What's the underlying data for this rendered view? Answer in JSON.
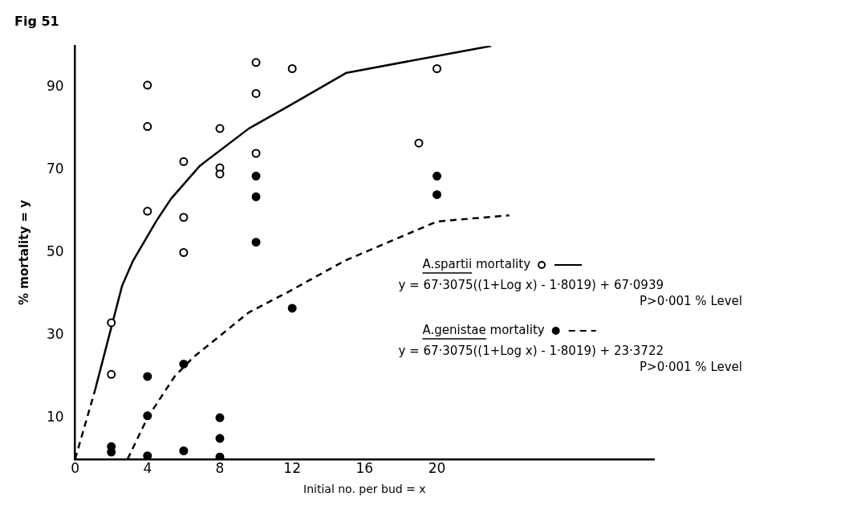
{
  "chart_data": {
    "type": "scatter",
    "title": "Fig 51",
    "xlabel": "Initial no. per bud = x",
    "ylabel": "% mortality = y",
    "xlim": [
      0,
      32
    ],
    "xticks": [
      0,
      4,
      8,
      12,
      16,
      20
    ],
    "ylim": [
      0,
      100
    ],
    "yticks": [
      10,
      30,
      50,
      70,
      90
    ],
    "grid": false,
    "legend": "right",
    "series": [
      {
        "name": "A.spartii mortality",
        "marker": "circle",
        "color": "#000000",
        "x": [
          2,
          2,
          4,
          4,
          4,
          6,
          6,
          6,
          8,
          8,
          8,
          10,
          10,
          10,
          12,
          19,
          20
        ],
        "values": [
          33,
          20.5,
          90.5,
          80.5,
          60,
          72,
          58.5,
          50,
          80,
          70.5,
          69,
          96,
          88.5,
          74,
          94.5,
          76.5,
          94.5
        ]
      },
      {
        "name": "A.genistae mortality",
        "marker": "circle",
        "color": "#000000",
        "x": [
          2,
          2,
          4,
          4,
          4,
          6,
          6,
          8,
          8,
          8,
          10,
          10,
          10,
          12,
          20,
          20
        ],
        "values": [
          3,
          1.7,
          20,
          10.5,
          0.8,
          23,
          2,
          10,
          5,
          0.5,
          68.5,
          63.5,
          52.5,
          36.5,
          68.5,
          64
        ]
      },
      {
        "type": "line",
        "marker": "none",
        "line_style": "solid",
        "color": "#000000",
        "x": [
          1.1,
          2.6,
          3.2,
          4.5,
          5.3,
          6.9,
          9.6,
          11.9,
          15,
          23
        ],
        "values": [
          16.7,
          42,
          48,
          57.7,
          63,
          71,
          80,
          85.7,
          93.5,
          100
        ]
      },
      {
        "type": "line",
        "marker": "none",
        "line_style": "dashed",
        "color": "#000000",
        "x": [
          2.9,
          4,
          5.5,
          6.5,
          9.6,
          11.8,
          14.9,
          20,
          24
        ],
        "values": [
          0,
          10,
          20,
          24.5,
          35.5,
          40.5,
          48,
          57.5,
          59
        ]
      },
      {
        "type": "line",
        "marker": "none",
        "line_style": "dashed",
        "color": "#000000",
        "x": [
          0,
          1.1
        ],
        "values": [
          0,
          16.7
        ]
      }
    ],
    "annotations": [
      "y = 67·3075((1+Log x) - 1·8019) + 67·0939",
      "P>0·001 % Level",
      "y = 67·3075((1+Log x) - 1·8019) + 23·3722",
      "P>0·001 % Level"
    ]
  }
}
